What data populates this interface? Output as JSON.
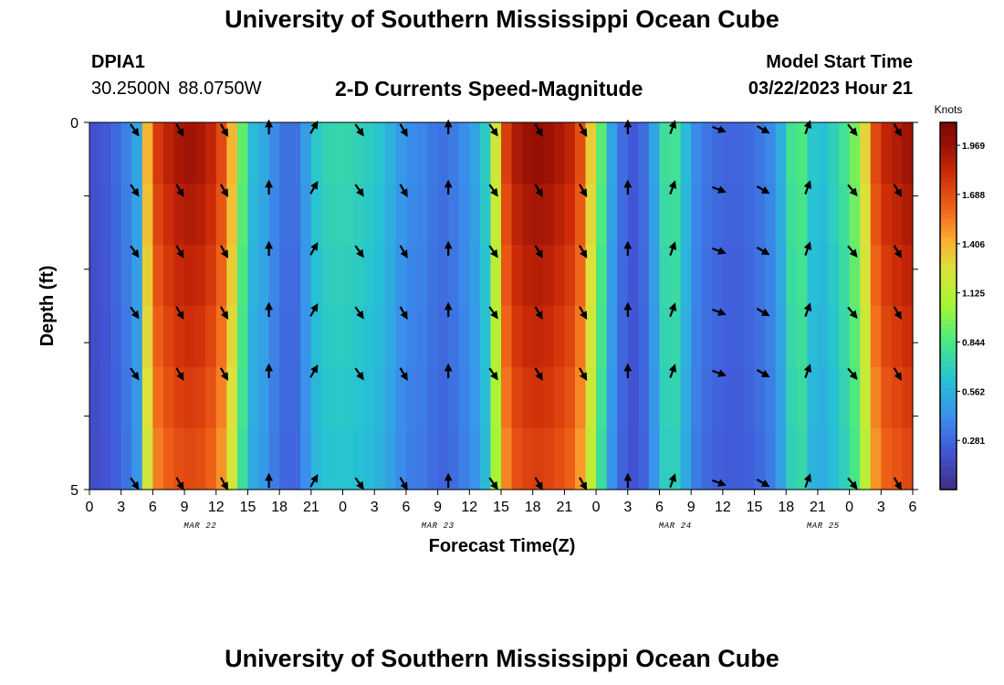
{
  "header": {
    "title": "University of Southern Mississippi Ocean Cube",
    "station": "DPIA1",
    "coords": "30.2500N  88.0750W",
    "subtitle": "2-D Currents Speed-Magnitude",
    "model_start_label": "Model Start Time",
    "model_start_value": "03/22/2023 Hour 21"
  },
  "footer": {
    "title": "University of Southern Mississippi Ocean Cube"
  },
  "chart_data": {
    "type": "heatmap",
    "xlabel": "Forecast Time(Z)",
    "ylabel": "Depth (ft)",
    "x_tick_labels": [
      "0",
      "3",
      "6",
      "9",
      "12",
      "15",
      "18",
      "21",
      "0",
      "3",
      "6",
      "9",
      "12",
      "15",
      "18",
      "21",
      "0",
      "3",
      "6",
      "9",
      "12",
      "15",
      "18",
      "21",
      "0",
      "3",
      "6"
    ],
    "date_labels": [
      {
        "text": "MAR 22",
        "hour": 10.5
      },
      {
        "text": "MAR 23",
        "hour": 33
      },
      {
        "text": "MAR 24",
        "hour": 55.5
      },
      {
        "text": "MAR 25",
        "hour": 69.5
      }
    ],
    "y_tick_labels": [
      "0",
      "5"
    ],
    "y_range": [
      0,
      5
    ],
    "x_range_hours": [
      0,
      78
    ],
    "depth_rows": 5,
    "colorbar": {
      "title": "Knots",
      "ticks": [
        "1.969",
        "1.688",
        "1.406",
        "1.125",
        "0.844",
        "0.562",
        "0.281"
      ],
      "tick_values": [
        1.969,
        1.688,
        1.406,
        1.125,
        0.844,
        0.562,
        0.281
      ],
      "range": [
        0,
        2.1
      ]
    },
    "speed_profile_knots": [
      [
        0,
        0.18
      ],
      [
        1,
        0.2
      ],
      [
        2,
        0.25
      ],
      [
        3,
        0.32
      ],
      [
        4,
        0.42
      ],
      [
        5,
        0.6
      ],
      [
        5.5,
        1.4
      ],
      [
        6,
        1.7
      ],
      [
        7,
        1.82
      ],
      [
        8,
        1.9
      ],
      [
        9,
        1.95
      ],
      [
        10,
        1.95
      ],
      [
        11,
        1.9
      ],
      [
        12,
        1.8
      ],
      [
        13,
        1.6
      ],
      [
        14,
        1.2
      ],
      [
        15,
        0.6
      ],
      [
        16,
        0.6
      ],
      [
        17,
        0.45
      ],
      [
        18,
        0.35
      ],
      [
        19,
        0.28
      ],
      [
        20,
        0.35
      ],
      [
        21,
        0.6
      ],
      [
        22,
        0.72
      ],
      [
        24,
        0.74
      ],
      [
        26,
        0.7
      ],
      [
        28,
        0.62
      ],
      [
        29,
        0.5
      ],
      [
        30,
        0.42
      ],
      [
        32,
        0.38
      ],
      [
        33,
        0.3
      ],
      [
        34,
        0.32
      ],
      [
        35,
        0.38
      ],
      [
        36,
        0.45
      ],
      [
        37,
        0.55
      ],
      [
        38,
        0.8
      ],
      [
        39,
        1.6
      ],
      [
        40,
        1.88
      ],
      [
        42,
        2.0
      ],
      [
        44,
        1.95
      ],
      [
        46,
        1.82
      ],
      [
        47,
        1.55
      ],
      [
        48,
        1.1
      ],
      [
        48.8,
        0.75
      ],
      [
        49.5,
        0.5
      ],
      [
        50.5,
        0.3
      ],
      [
        51.5,
        0.22
      ],
      [
        52.5,
        0.3
      ],
      [
        53.5,
        0.5
      ],
      [
        54.5,
        0.78
      ],
      [
        55.5,
        0.8
      ],
      [
        56.5,
        0.6
      ],
      [
        57.5,
        0.4
      ],
      [
        59,
        0.3
      ],
      [
        61,
        0.26
      ],
      [
        63,
        0.3
      ],
      [
        64.5,
        0.4
      ],
      [
        65.5,
        0.55
      ],
      [
        66.5,
        0.8
      ],
      [
        67.5,
        0.85
      ],
      [
        68.5,
        0.65
      ],
      [
        69.5,
        0.62
      ],
      [
        70.5,
        0.7
      ],
      [
        71.5,
        0.8
      ],
      [
        72.5,
        0.95
      ],
      [
        73.5,
        1.3
      ],
      [
        74.5,
        1.7
      ],
      [
        75.5,
        1.85
      ],
      [
        76.5,
        1.9
      ],
      [
        77.5,
        1.95
      ],
      [
        78,
        1.95
      ]
    ],
    "arrow_hours": [
      4.2,
      8.5,
      12.7,
      17,
      21.2,
      25.5,
      29.7,
      34,
      38.2,
      42.5,
      46.7,
      51,
      55.2,
      59.5,
      63.7,
      68,
      72.2,
      76.5
    ],
    "arrow_directions_deg": [
      145,
      150,
      150,
      0,
      30,
      145,
      150,
      0,
      145,
      150,
      150,
      0,
      20,
      110,
      120,
      20,
      140,
      150
    ]
  }
}
